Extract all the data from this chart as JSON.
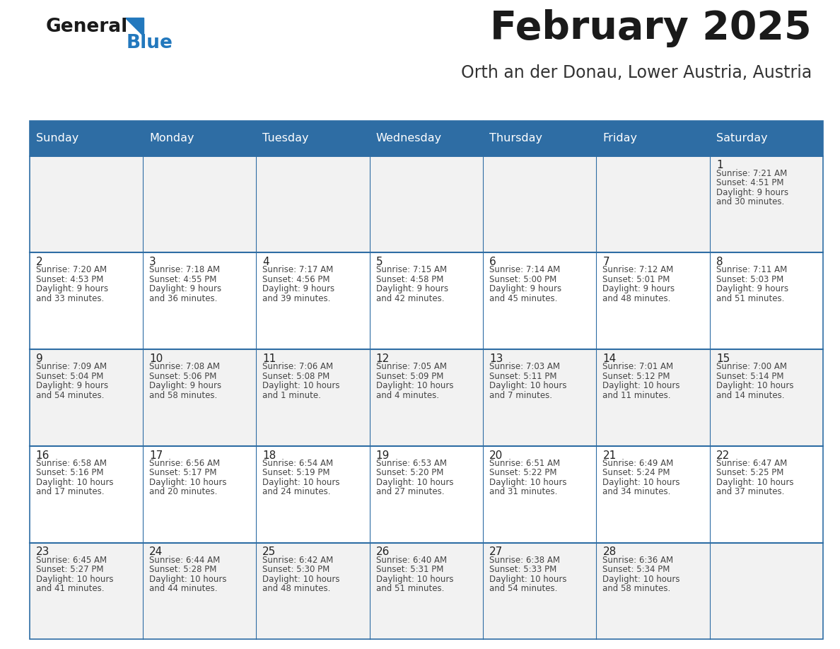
{
  "title": "February 2025",
  "subtitle": "Orth an der Donau, Lower Austria, Austria",
  "days_of_week": [
    "Sunday",
    "Monday",
    "Tuesday",
    "Wednesday",
    "Thursday",
    "Friday",
    "Saturday"
  ],
  "header_bg": "#2E6DA4",
  "header_text": "#FFFFFF",
  "row_bg_odd": "#F2F2F2",
  "row_bg_even": "#FFFFFF",
  "day_number_color": "#333333",
  "cell_text_color": "#444444",
  "border_color": "#2E6DA4",
  "title_color": "#1a1a1a",
  "subtitle_color": "#333333",
  "blue_text_color": "#2278BD",
  "logo_black": "#1a1a1a",
  "calendar": [
    [
      null,
      null,
      null,
      null,
      null,
      null,
      1
    ],
    [
      2,
      3,
      4,
      5,
      6,
      7,
      8
    ],
    [
      9,
      10,
      11,
      12,
      13,
      14,
      15
    ],
    [
      16,
      17,
      18,
      19,
      20,
      21,
      22
    ],
    [
      23,
      24,
      25,
      26,
      27,
      28,
      null
    ]
  ],
  "day_data": {
    "1": {
      "sunrise": "7:21 AM",
      "sunset": "4:51 PM",
      "daylight_hours": 9,
      "daylight_minutes": 30
    },
    "2": {
      "sunrise": "7:20 AM",
      "sunset": "4:53 PM",
      "daylight_hours": 9,
      "daylight_minutes": 33
    },
    "3": {
      "sunrise": "7:18 AM",
      "sunset": "4:55 PM",
      "daylight_hours": 9,
      "daylight_minutes": 36
    },
    "4": {
      "sunrise": "7:17 AM",
      "sunset": "4:56 PM",
      "daylight_hours": 9,
      "daylight_minutes": 39
    },
    "5": {
      "sunrise": "7:15 AM",
      "sunset": "4:58 PM",
      "daylight_hours": 9,
      "daylight_minutes": 42
    },
    "6": {
      "sunrise": "7:14 AM",
      "sunset": "5:00 PM",
      "daylight_hours": 9,
      "daylight_minutes": 45
    },
    "7": {
      "sunrise": "7:12 AM",
      "sunset": "5:01 PM",
      "daylight_hours": 9,
      "daylight_minutes": 48
    },
    "8": {
      "sunrise": "7:11 AM",
      "sunset": "5:03 PM",
      "daylight_hours": 9,
      "daylight_minutes": 51
    },
    "9": {
      "sunrise": "7:09 AM",
      "sunset": "5:04 PM",
      "daylight_hours": 9,
      "daylight_minutes": 54
    },
    "10": {
      "sunrise": "7:08 AM",
      "sunset": "5:06 PM",
      "daylight_hours": 9,
      "daylight_minutes": 58
    },
    "11": {
      "sunrise": "7:06 AM",
      "sunset": "5:08 PM",
      "daylight_hours": 10,
      "daylight_minutes": 1
    },
    "12": {
      "sunrise": "7:05 AM",
      "sunset": "5:09 PM",
      "daylight_hours": 10,
      "daylight_minutes": 4
    },
    "13": {
      "sunrise": "7:03 AM",
      "sunset": "5:11 PM",
      "daylight_hours": 10,
      "daylight_minutes": 7
    },
    "14": {
      "sunrise": "7:01 AM",
      "sunset": "5:12 PM",
      "daylight_hours": 10,
      "daylight_minutes": 11
    },
    "15": {
      "sunrise": "7:00 AM",
      "sunset": "5:14 PM",
      "daylight_hours": 10,
      "daylight_minutes": 14
    },
    "16": {
      "sunrise": "6:58 AM",
      "sunset": "5:16 PM",
      "daylight_hours": 10,
      "daylight_minutes": 17
    },
    "17": {
      "sunrise": "6:56 AM",
      "sunset": "5:17 PM",
      "daylight_hours": 10,
      "daylight_minutes": 20
    },
    "18": {
      "sunrise": "6:54 AM",
      "sunset": "5:19 PM",
      "daylight_hours": 10,
      "daylight_minutes": 24
    },
    "19": {
      "sunrise": "6:53 AM",
      "sunset": "5:20 PM",
      "daylight_hours": 10,
      "daylight_minutes": 27
    },
    "20": {
      "sunrise": "6:51 AM",
      "sunset": "5:22 PM",
      "daylight_hours": 10,
      "daylight_minutes": 31
    },
    "21": {
      "sunrise": "6:49 AM",
      "sunset": "5:24 PM",
      "daylight_hours": 10,
      "daylight_minutes": 34
    },
    "22": {
      "sunrise": "6:47 AM",
      "sunset": "5:25 PM",
      "daylight_hours": 10,
      "daylight_minutes": 37
    },
    "23": {
      "sunrise": "6:45 AM",
      "sunset": "5:27 PM",
      "daylight_hours": 10,
      "daylight_minutes": 41
    },
    "24": {
      "sunrise": "6:44 AM",
      "sunset": "5:28 PM",
      "daylight_hours": 10,
      "daylight_minutes": 44
    },
    "25": {
      "sunrise": "6:42 AM",
      "sunset": "5:30 PM",
      "daylight_hours": 10,
      "daylight_minutes": 48
    },
    "26": {
      "sunrise": "6:40 AM",
      "sunset": "5:31 PM",
      "daylight_hours": 10,
      "daylight_minutes": 51
    },
    "27": {
      "sunrise": "6:38 AM",
      "sunset": "5:33 PM",
      "daylight_hours": 10,
      "daylight_minutes": 54
    },
    "28": {
      "sunrise": "6:36 AM",
      "sunset": "5:34 PM",
      "daylight_hours": 10,
      "daylight_minutes": 58
    }
  }
}
